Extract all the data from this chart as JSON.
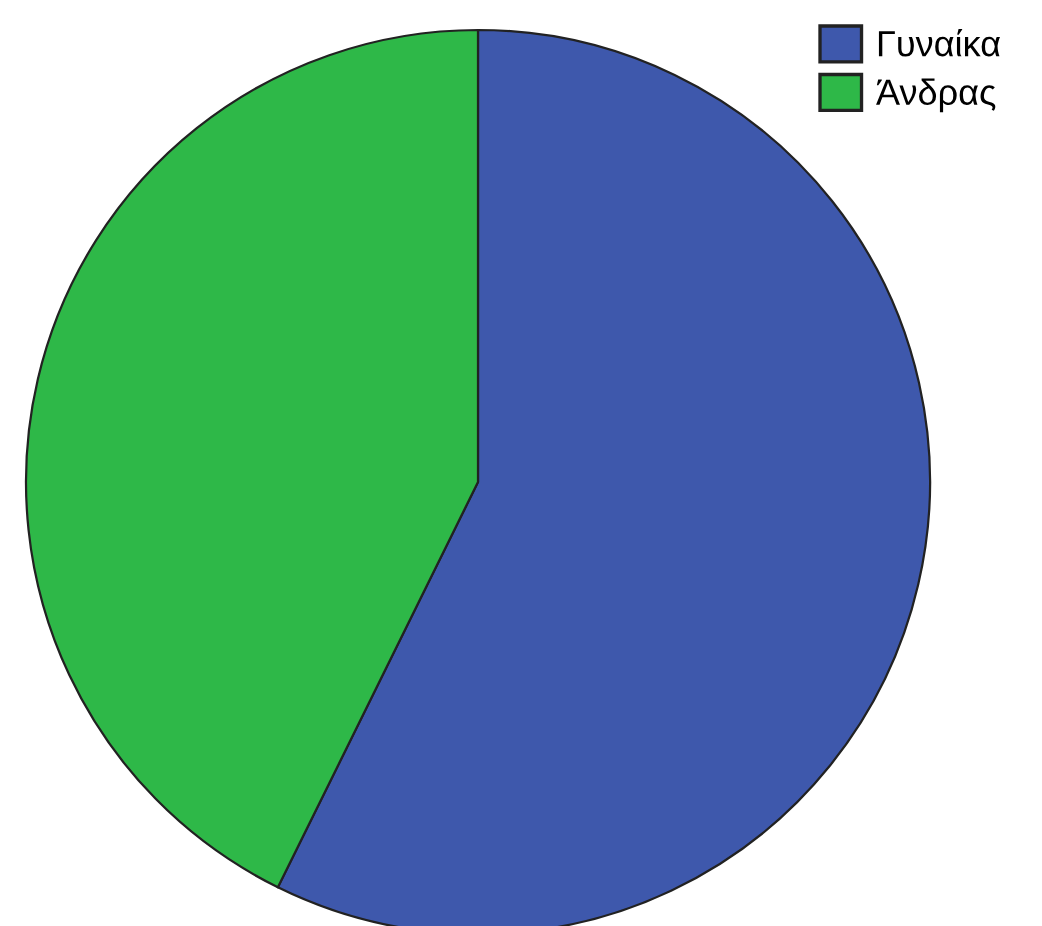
{
  "chart_data": {
    "type": "pie",
    "categories": [
      "Γυναίκα",
      "Άνδρας"
    ],
    "values": [
      57.3,
      42.7
    ],
    "colors": [
      "#3e58ac",
      "#2eb848"
    ],
    "legend": "top right"
  }
}
